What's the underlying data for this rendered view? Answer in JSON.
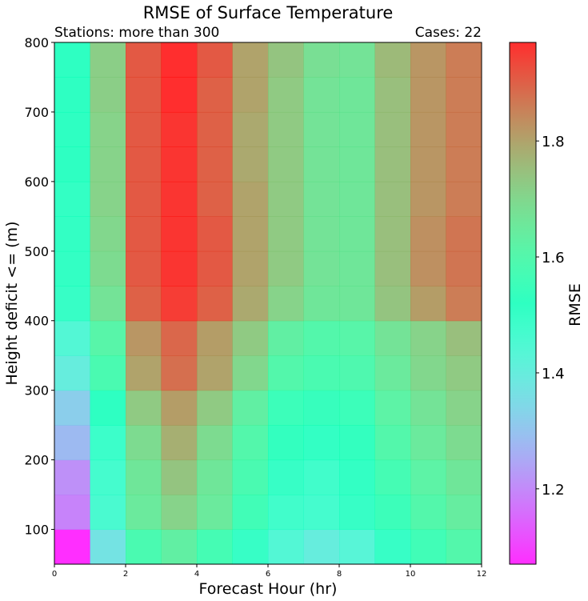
{
  "chart_data": {
    "type": "heatmap",
    "title": "RMSE of Surface Temperature",
    "subtitle_left": "Stations: more than 300",
    "subtitle_right": "Cases: 22",
    "xlabel": "Forecast Hour (hr)",
    "ylabel": "Height deficit <= (m)",
    "colorbar_label": "RMSE",
    "colormap": "rainbow",
    "xlim": [
      0,
      12
    ],
    "ylim": [
      50,
      800
    ],
    "clim": [
      1.07,
      1.97
    ],
    "x_ticks": [
      0,
      2,
      4,
      6,
      8,
      10,
      12
    ],
    "y_ticks": [
      100,
      200,
      300,
      400,
      500,
      600,
      700,
      800
    ],
    "colorbar_ticks": [
      1.2,
      1.4,
      1.6,
      1.8
    ],
    "x_edges": [
      0,
      1,
      2,
      3,
      4,
      5,
      6,
      7,
      8,
      9,
      10,
      11,
      12
    ],
    "y_edges": [
      50,
      100,
      150,
      200,
      250,
      300,
      350,
      400,
      450,
      500,
      550,
      600,
      650,
      700,
      750,
      800
    ],
    "values": [
      [
        1.07,
        1.37,
        1.58,
        1.63,
        1.57,
        1.5,
        1.44,
        1.4,
        1.43,
        1.5,
        1.56,
        1.6
      ],
      [
        1.19,
        1.46,
        1.65,
        1.71,
        1.65,
        1.56,
        1.48,
        1.47,
        1.5,
        1.55,
        1.6,
        1.64
      ],
      [
        1.21,
        1.47,
        1.66,
        1.74,
        1.66,
        1.58,
        1.5,
        1.48,
        1.51,
        1.57,
        1.62,
        1.66
      ],
      [
        1.28,
        1.49,
        1.69,
        1.78,
        1.69,
        1.6,
        1.53,
        1.51,
        1.53,
        1.6,
        1.65,
        1.69
      ],
      [
        1.32,
        1.52,
        1.73,
        1.81,
        1.73,
        1.63,
        1.55,
        1.54,
        1.55,
        1.62,
        1.67,
        1.71
      ],
      [
        1.4,
        1.58,
        1.8,
        1.88,
        1.8,
        1.7,
        1.6,
        1.58,
        1.59,
        1.65,
        1.7,
        1.73
      ],
      [
        1.44,
        1.61,
        1.82,
        1.89,
        1.81,
        1.73,
        1.63,
        1.6,
        1.61,
        1.67,
        1.71,
        1.75
      ],
      [
        1.5,
        1.67,
        1.9,
        1.95,
        1.9,
        1.79,
        1.71,
        1.66,
        1.66,
        1.74,
        1.81,
        1.86
      ],
      [
        1.51,
        1.69,
        1.91,
        1.96,
        1.91,
        1.8,
        1.73,
        1.67,
        1.66,
        1.75,
        1.83,
        1.87
      ],
      [
        1.51,
        1.7,
        1.91,
        1.96,
        1.91,
        1.8,
        1.73,
        1.67,
        1.66,
        1.75,
        1.83,
        1.87
      ],
      [
        1.51,
        1.71,
        1.91,
        1.96,
        1.9,
        1.8,
        1.73,
        1.67,
        1.66,
        1.75,
        1.82,
        1.86
      ],
      [
        1.52,
        1.71,
        1.91,
        1.96,
        1.9,
        1.79,
        1.73,
        1.67,
        1.66,
        1.75,
        1.82,
        1.86
      ],
      [
        1.52,
        1.71,
        1.91,
        1.96,
        1.9,
        1.79,
        1.73,
        1.67,
        1.66,
        1.75,
        1.82,
        1.86
      ],
      [
        1.52,
        1.72,
        1.91,
        1.97,
        1.9,
        1.8,
        1.73,
        1.67,
        1.66,
        1.75,
        1.82,
        1.86
      ],
      [
        1.52,
        1.72,
        1.91,
        1.97,
        1.91,
        1.8,
        1.74,
        1.68,
        1.67,
        1.76,
        1.82,
        1.86
      ]
    ]
  }
}
